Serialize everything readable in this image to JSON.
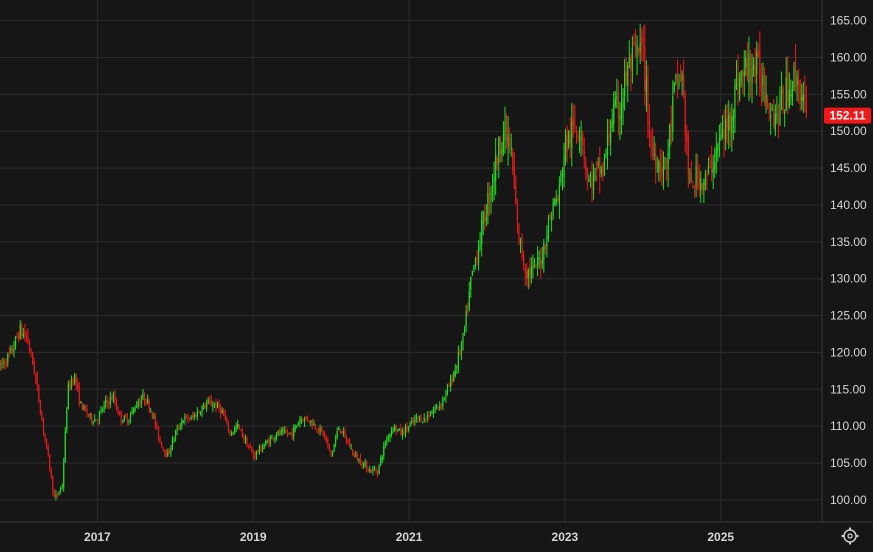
{
  "chart_data": {
    "type": "candlestick",
    "y_ticks": [
      "100.00",
      "105.00",
      "110.00",
      "115.00",
      "120.00",
      "125.00",
      "130.00",
      "135.00",
      "140.00",
      "145.00",
      "150.00",
      "155.00",
      "160.00",
      "165.00"
    ],
    "y_tick_values": [
      100,
      105,
      110,
      115,
      120,
      125,
      130,
      135,
      140,
      145,
      150,
      155,
      160,
      165
    ],
    "x_ticks": [
      "2017",
      "2019",
      "2021",
      "2023",
      "2025"
    ],
    "x_tick_dates": [
      2017.0,
      2019.0,
      2021.0,
      2023.0,
      2025.0
    ],
    "xlim": [
      2015.75,
      2026.3
    ],
    "ylim": [
      97.0,
      167.8
    ],
    "grid": true,
    "last_price": "152.11",
    "last_price_value": 152.11,
    "up_color": "#26d926",
    "down_color": "#e61b1b",
    "last_price_color": "#f01818",
    "series": [
      {
        "x": [
          2015.75,
          2015.9,
          2016.0,
          2016.1,
          2016.2,
          2016.3,
          2016.38,
          2016.45,
          2016.55,
          2016.62,
          2016.7,
          2016.78,
          2016.85,
          2016.92,
          2017.0,
          2017.1,
          2017.2,
          2017.3,
          2017.4,
          2017.5,
          2017.6,
          2017.7,
          2017.8,
          2017.9,
          2018.0,
          2018.1,
          2018.2,
          2018.3,
          2018.4,
          2018.5,
          2018.6,
          2018.7,
          2018.8,
          2018.9,
          2019.0,
          2019.1,
          2019.2,
          2019.3,
          2019.4,
          2019.5,
          2019.6,
          2019.7,
          2019.8,
          2019.9,
          2020.0,
          2020.1,
          2020.2,
          2020.3,
          2020.4,
          2020.5,
          2020.6,
          2020.7,
          2020.8,
          2020.9,
          2021.0,
          2021.1,
          2021.2,
          2021.3,
          2021.4,
          2021.5,
          2021.6,
          2021.7,
          2021.8,
          2021.9,
          2022.0,
          2022.1,
          2022.2,
          2022.3,
          2022.4,
          2022.5,
          2022.6,
          2022.7,
          2022.78,
          2022.85,
          2022.92,
          2023.0,
          2023.1,
          2023.2,
          2023.3,
          2023.4,
          2023.5,
          2023.6,
          2023.7,
          2023.8,
          2023.9,
          2024.0,
          2024.1,
          2024.2,
          2024.3,
          2024.4,
          2024.5,
          2024.55,
          2024.6,
          2024.7,
          2024.8,
          2024.9,
          2025.0,
          2025.1,
          2025.2,
          2025.3,
          2025.4,
          2025.5,
          2025.6,
          2025.7,
          2025.8,
          2025.9,
          2026.0,
          2026.05,
          2026.1
        ],
        "y": [
          118,
          120,
          123,
          122,
          117,
          110,
          105,
          100,
          102,
          115,
          117,
          113,
          112,
          111,
          111,
          113,
          114,
          111,
          111,
          113,
          114,
          112,
          108,
          106,
          109,
          111,
          111,
          112,
          113,
          113,
          112,
          109,
          110,
          108,
          106,
          107,
          108,
          109,
          109,
          109,
          111,
          111,
          110,
          109,
          106,
          110,
          108,
          106,
          105,
          104,
          104,
          108,
          110,
          109,
          110,
          111,
          111,
          112,
          113,
          115,
          118,
          122,
          130,
          135,
          140,
          145,
          150,
          148,
          136,
          131,
          131,
          133,
          137,
          140,
          141,
          148,
          150,
          151,
          143,
          144,
          145,
          152,
          153,
          158,
          160,
          161,
          148,
          146,
          145,
          155,
          158,
          150,
          142,
          144,
          143,
          146,
          149,
          151,
          156,
          158,
          159,
          158,
          155,
          152,
          154,
          157,
          157,
          154,
          152.11
        ]
      }
    ]
  },
  "axis_settings_icon": "settings-icon"
}
